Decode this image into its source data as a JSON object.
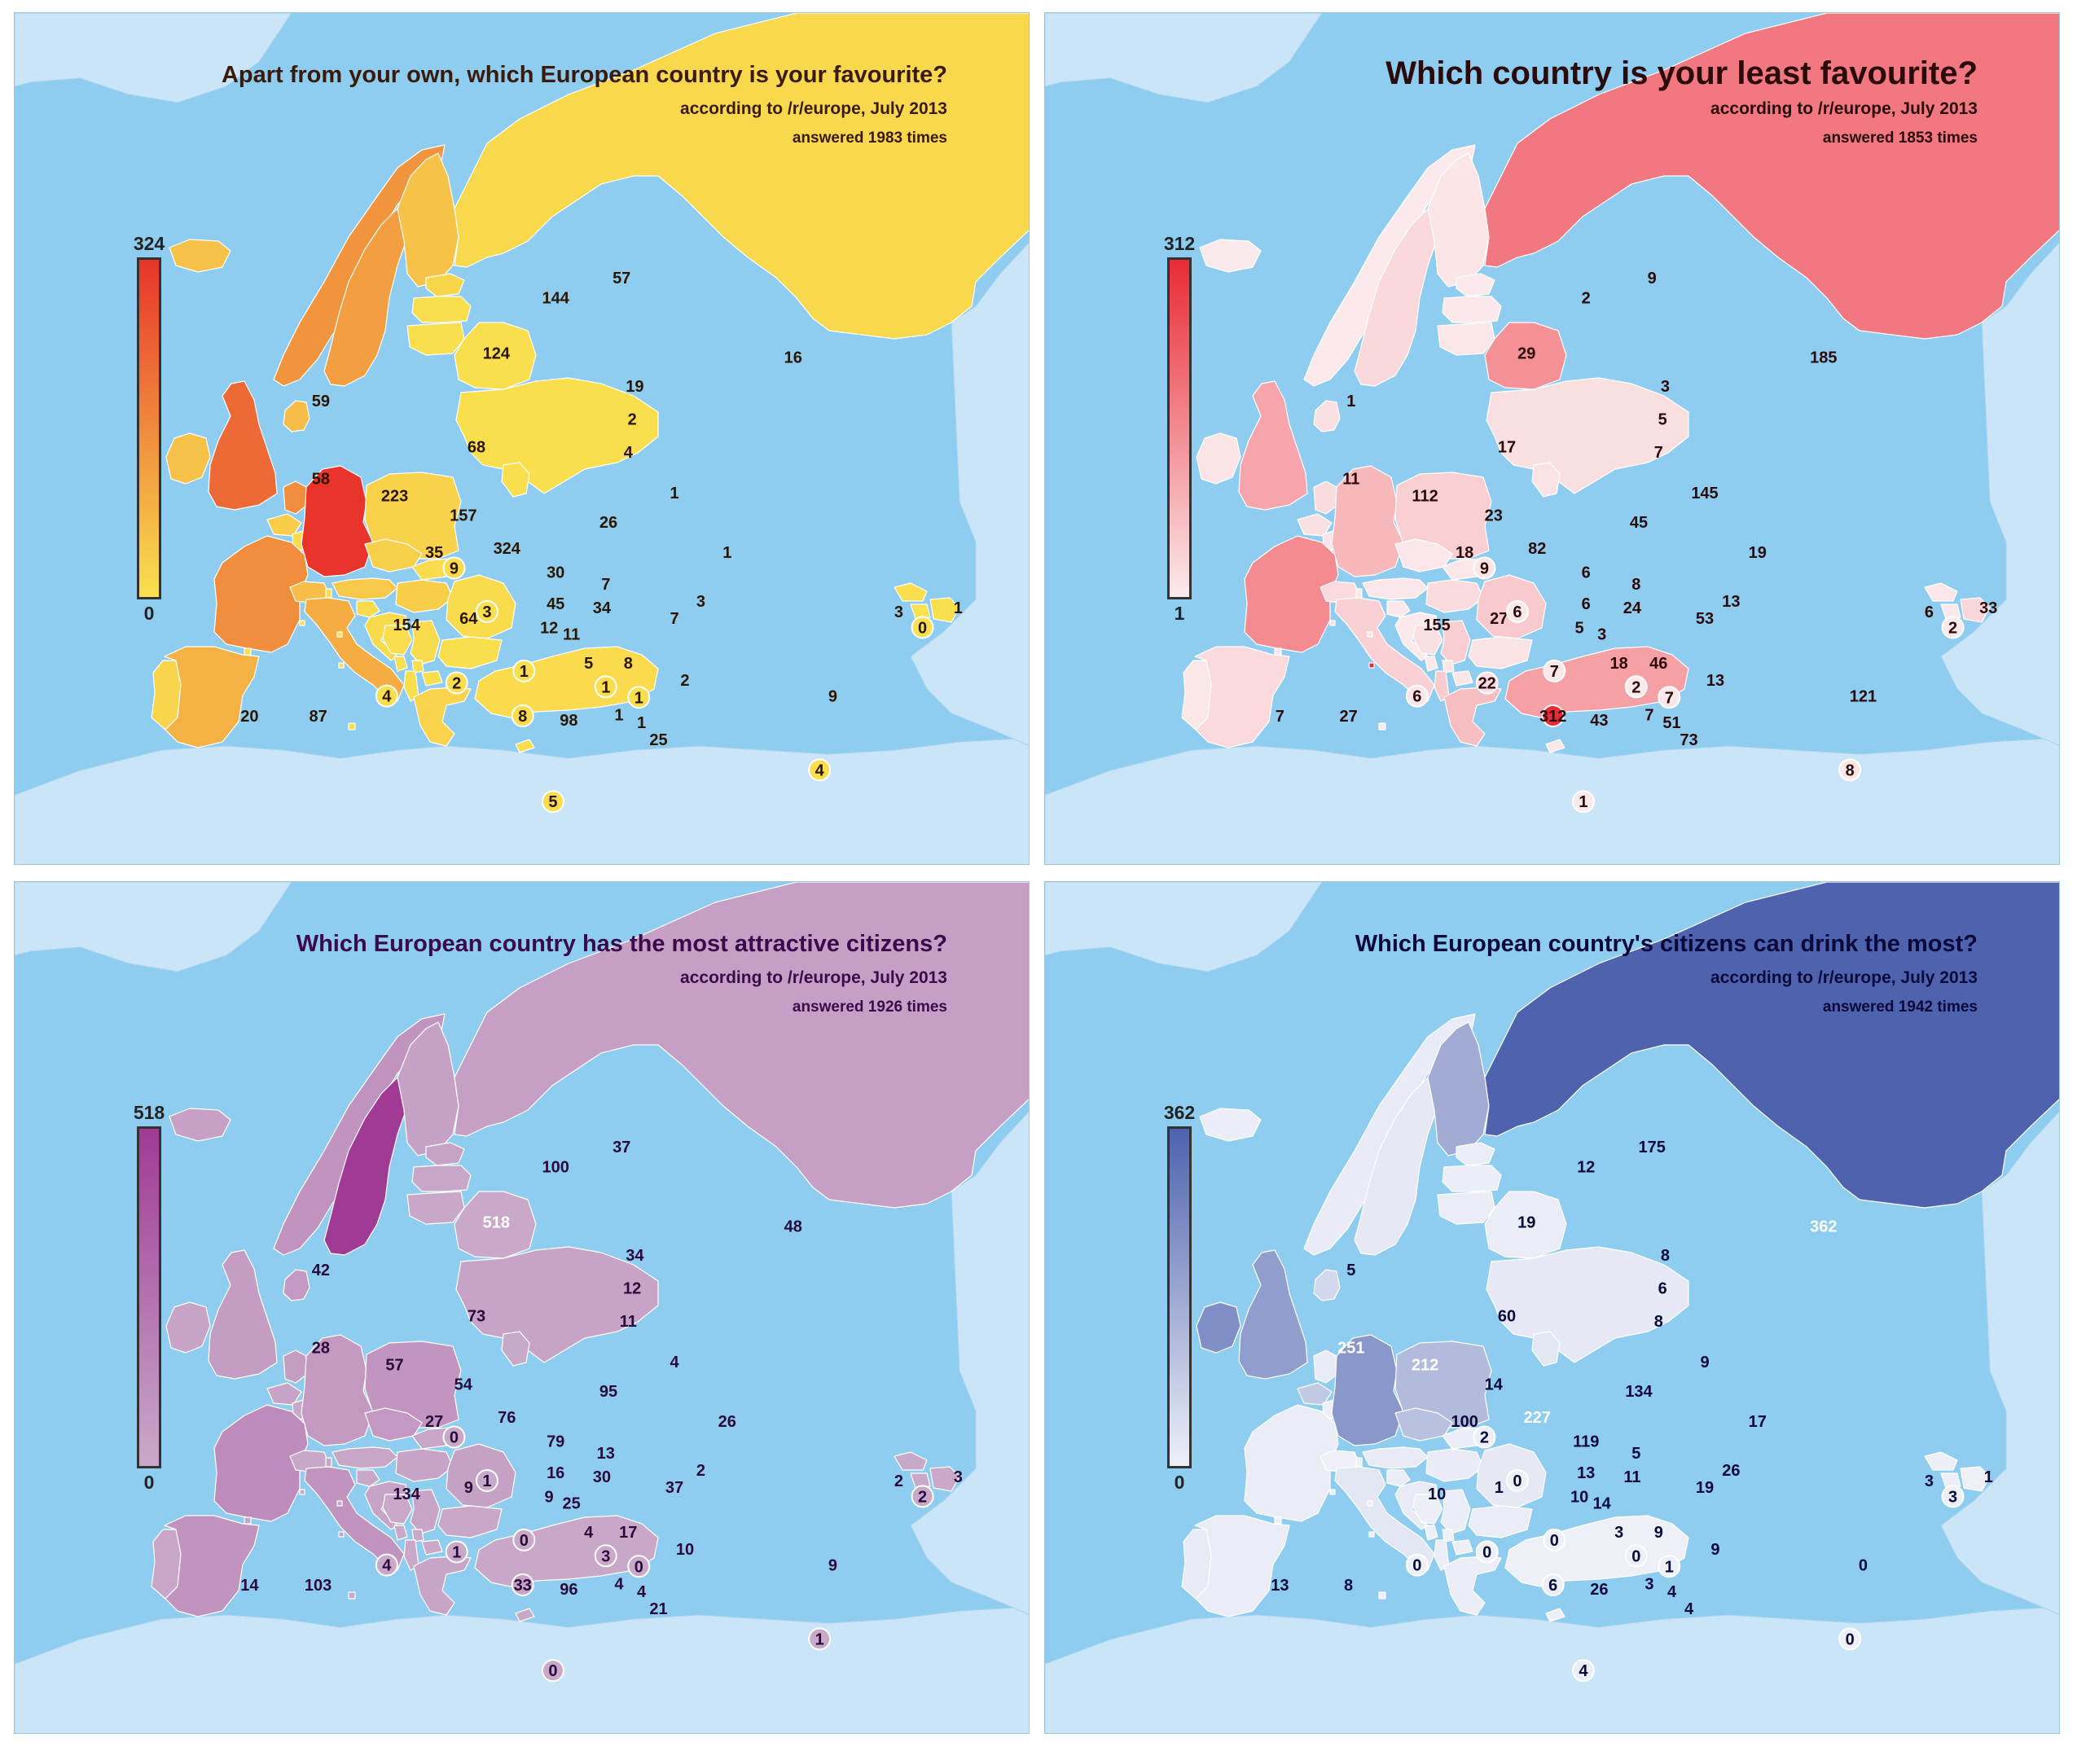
{
  "panels": [
    {
      "title": "Apart from your own, which European country is your favourite?",
      "subtitle": "according to /r/europe, July 2013",
      "answered": "answered 1983 times",
      "scale": {
        "max": "324",
        "min": "0",
        "max_value": 324,
        "min_value": 0,
        "color_low": "#f9e04e",
        "color_high": "#e8342b"
      },
      "title_color": "#3a1a0a",
      "label_color": "#2a1500",
      "values": {
        "IS": "59",
        "NO": "144",
        "FI": "57",
        "SE": "124",
        "RU": "16",
        "EE": "19",
        "LV": "2",
        "LT": "4",
        "BY": "1",
        "UA": "1",
        "MD": "3",
        "DK": "68",
        "IE": "58",
        "GB": "223",
        "NL": "157",
        "BE": "35",
        "LU": "9",
        "DE": "324",
        "PL": "26",
        "CZ": "30",
        "SK": "7",
        "FR": "154",
        "CH": "64",
        "LI": "3",
        "AT": "45",
        "HU": "34",
        "RO": "7",
        "SI": "12",
        "HR": "11",
        "BA": "5",
        "RS": "8",
        "BG": "2",
        "ME": "1",
        "XK": "1",
        "MK": "1",
        "AL": "1",
        "GR": "25",
        "IT": "98",
        "SM": "1",
        "MC": "2",
        "AD": "4",
        "VA": "8",
        "PT": "20",
        "ES": "87",
        "MT": "5",
        "TR": "9",
        "CY": "4",
        "GE": "3",
        "AM": "0",
        "AZ": "1"
      }
    },
    {
      "title": "Which country is your least favourite?",
      "subtitle": "according to /r/europe, July 2013",
      "answered": "answered 1853 times",
      "scale": {
        "max": "312",
        "min": "1",
        "max_value": 312,
        "min_value": 1,
        "color_low": "#fbeaec",
        "color_high": "#ea2a35"
      },
      "title_color": "#2a0a0a",
      "label_color": "#2a0a0a",
      "values": {
        "IS": "1",
        "NO": "2",
        "FI": "9",
        "SE": "29",
        "RU": "185",
        "EE": "3",
        "LV": "5",
        "LT": "7",
        "BY": "145",
        "UA": "19",
        "MD": "13",
        "DK": "17",
        "IE": "11",
        "GB": "112",
        "NL": "23",
        "BE": "18",
        "LU": "9",
        "DE": "82",
        "PL": "45",
        "CZ": "6",
        "SK": "8",
        "FR": "155",
        "CH": "27",
        "LI": "6",
        "AT": "6",
        "HU": "24",
        "RO": "53",
        "SI": "5",
        "HR": "3",
        "BA": "18",
        "RS": "46",
        "BG": "13",
        "ME": "2",
        "XK": "7",
        "MK": "7",
        "AL": "51",
        "GR": "73",
        "IT": "43",
        "SM": "7",
        "MC": "22",
        "AD": "6",
        "VA": "312",
        "PT": "7",
        "ES": "27",
        "MT": "1",
        "TR": "121",
        "CY": "8",
        "GE": "6",
        "AM": "2",
        "AZ": "33"
      }
    },
    {
      "title": "Which European country has the most attractive citizens?",
      "subtitle": "according to /r/europe, July 2013",
      "answered": "answered 1926 times",
      "scale": {
        "max": "518",
        "min": "0",
        "max_value": 518,
        "min_value": 0,
        "color_low": "#c9a9ca",
        "color_high": "#a03a95"
      },
      "title_color": "#3a0a4a",
      "label_color": "#2a0a3a",
      "values": {
        "IS": "42",
        "NO": "100",
        "FI": "37",
        "SE": "518",
        "RU": "48",
        "EE": "34",
        "LV": "12",
        "LT": "11",
        "BY": "4",
        "UA": "26",
        "MD": "2",
        "DK": "73",
        "IE": "28",
        "GB": "57",
        "NL": "54",
        "BE": "27",
        "LU": "0",
        "DE": "76",
        "PL": "95",
        "CZ": "79",
        "SK": "13",
        "FR": "134",
        "CH": "9",
        "LI": "1",
        "AT": "16",
        "HU": "30",
        "RO": "37",
        "SI": "9",
        "HR": "25",
        "BA": "4",
        "RS": "17",
        "BG": "10",
        "ME": "3",
        "XK": "0",
        "MK": "4",
        "AL": "4",
        "GR": "21",
        "IT": "96",
        "SM": "0",
        "MC": "1",
        "AD": "4",
        "VA": "33",
        "PT": "14",
        "ES": "103",
        "MT": "0",
        "TR": "9",
        "CY": "1",
        "GE": "2",
        "AM": "2",
        "AZ": "3"
      }
    },
    {
      "title": "Which European country's citizens can drink the most?",
      "subtitle": "according to /r/europe, July 2013",
      "answered": "answered 1942 times",
      "scale": {
        "max": "362",
        "min": "0",
        "max_value": 362,
        "min_value": 0,
        "color_low": "#eef0f8",
        "color_high": "#4e62ae"
      },
      "title_color": "#0a0a3a",
      "label_color": "#0a0a3a",
      "values": {
        "IS": "5",
        "NO": "12",
        "FI": "175",
        "SE": "19",
        "RU": "362",
        "EE": "8",
        "LV": "6",
        "LT": "8",
        "BY": "9",
        "UA": "17",
        "MD": "26",
        "DK": "60",
        "IE": "251",
        "GB": "212",
        "NL": "14",
        "BE": "100",
        "LU": "2",
        "DE": "227",
        "PL": "134",
        "CZ": "119",
        "SK": "5",
        "FR": "10",
        "CH": "1",
        "LI": "0",
        "AT": "13",
        "HU": "11",
        "RO": "19",
        "SI": "10",
        "HR": "14",
        "BA": "3",
        "RS": "9",
        "BG": "9",
        "ME": "0",
        "XK": "1",
        "MK": "3",
        "AL": "4",
        "GR": "4",
        "IT": "26",
        "SM": "0",
        "MC": "0",
        "AD": "0",
        "VA": "6",
        "PT": "13",
        "ES": "8",
        "MT": "4",
        "TR": "0",
        "CY": "0",
        "GE": "3",
        "AM": "3",
        "AZ": "1"
      }
    }
  ]
}
